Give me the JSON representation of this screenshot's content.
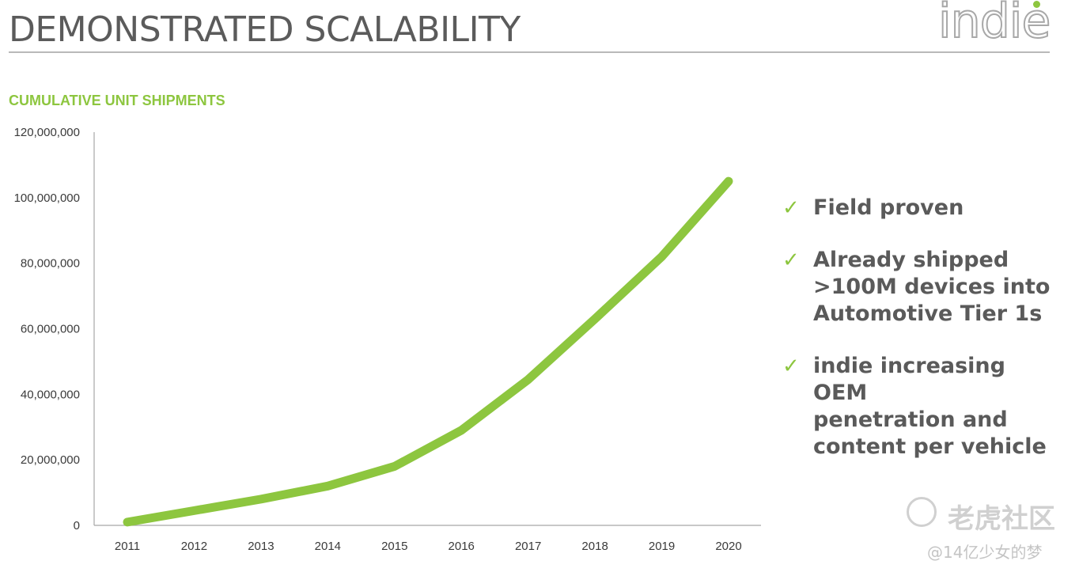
{
  "header": {
    "title": "DEMONSTRATED SCALABILITY",
    "logo_text": "indie"
  },
  "chart_data": {
    "type": "line",
    "title": "CUMULATIVE UNIT SHIPMENTS",
    "xlabel": "",
    "ylabel": "",
    "categories": [
      "2011",
      "2012",
      "2013",
      "2014",
      "2015",
      "2016",
      "2017",
      "2018",
      "2019",
      "2020"
    ],
    "series": [
      {
        "values": [
          1000000,
          4500000,
          8000000,
          12000000,
          18000000,
          29000000,
          44500000,
          63000000,
          82000000,
          105000000
        ],
        "color": "#8dc63f"
      }
    ],
    "ylim": [
      0,
      120000000
    ],
    "yticks": [
      "0",
      "20,000,000",
      "40,000,000",
      "60,000,000",
      "80,000,000",
      "100,000,000",
      "120,000,000"
    ],
    "grid": false,
    "legend": "none"
  },
  "bullets": [
    {
      "icon": "check-icon",
      "lines": [
        "Field proven"
      ]
    },
    {
      "icon": "check-icon",
      "lines": [
        "Already shipped",
        ">100M devices into",
        "Automotive Tier 1s"
      ]
    },
    {
      "icon": "check-icon",
      "lines": [
        "indie increasing OEM",
        "penetration and",
        "content per vehicle"
      ]
    }
  ],
  "watermark": {
    "name": "老虎社区",
    "handle": "@14亿少女的梦"
  },
  "colors": {
    "accent": "#8dc63f",
    "title_text": "#5b5b5b",
    "bullet_text": "#5a5a5a"
  }
}
